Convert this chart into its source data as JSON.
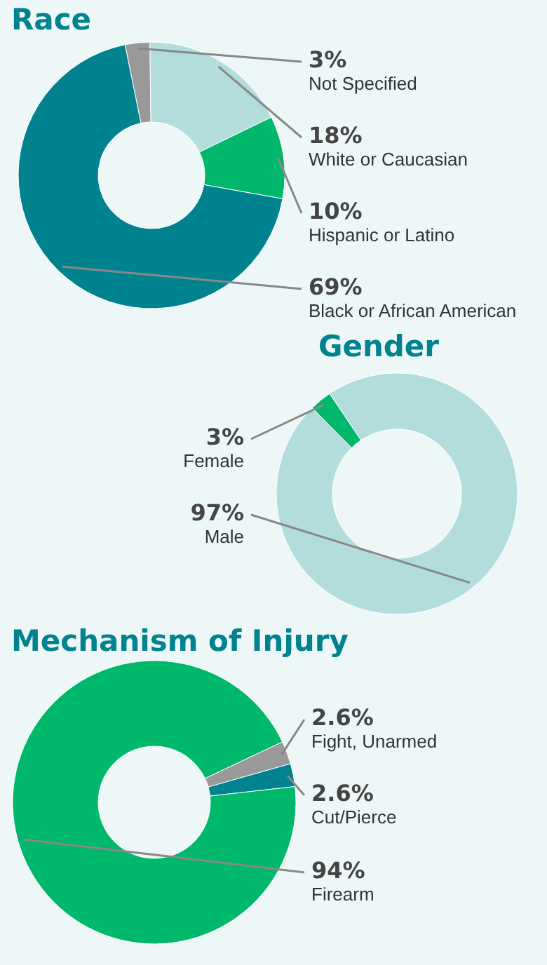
{
  "chart_data": [
    {
      "type": "donut",
      "title": "Race",
      "categories": [
        "Not Specified",
        "White or Caucasian",
        "Hispanic or Latino",
        "Black or African American"
      ],
      "values": [
        3,
        18,
        10,
        69
      ],
      "value_labels": [
        "3%",
        "18%",
        "10%",
        "69%"
      ],
      "colors": [
        "#999999",
        "#b3dcdc",
        "#00b86b",
        "#00838f"
      ]
    },
    {
      "type": "donut",
      "title": "Gender",
      "categories": [
        "Female",
        "Male"
      ],
      "values": [
        3,
        97
      ],
      "value_labels": [
        "3%",
        "97%"
      ],
      "colors": [
        "#00b86b",
        "#b3dcdc"
      ]
    },
    {
      "type": "donut",
      "title": "Mechanism of Injury",
      "categories": [
        "Fight, Unarmed",
        "Cut/Pierce",
        "Firearm"
      ],
      "values": [
        2.6,
        2.6,
        94
      ],
      "value_labels": [
        "2.6%",
        "2.6%",
        "94%"
      ],
      "colors": [
        "#999999",
        "#00838f",
        "#00b86b"
      ]
    }
  ]
}
